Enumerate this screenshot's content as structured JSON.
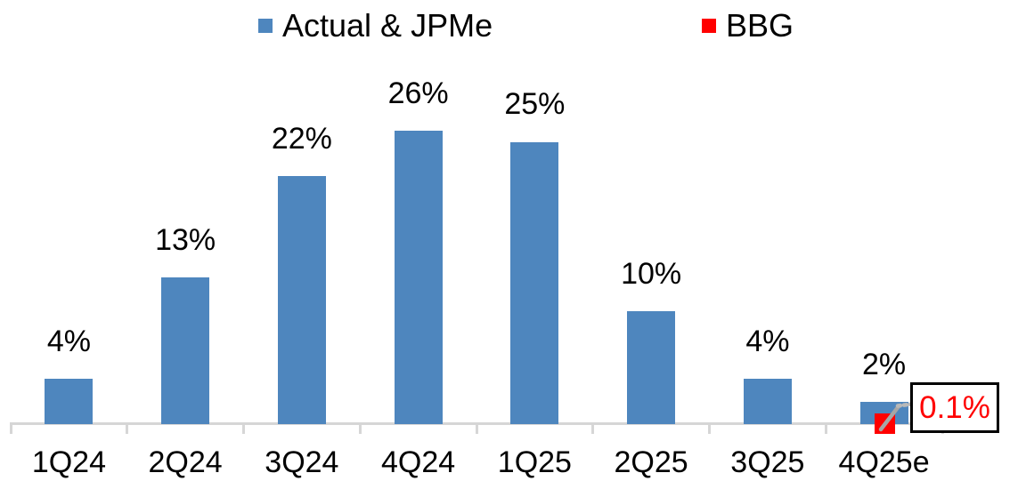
{
  "chart_data": {
    "type": "bar",
    "title": "",
    "xlabel": "",
    "ylabel": "",
    "grid": false,
    "y_axis_visible": false,
    "legend_position": "top",
    "ylim": [
      0,
      30
    ],
    "categories": [
      "1Q24",
      "2Q24",
      "3Q24",
      "4Q24",
      "1Q25",
      "2Q25",
      "3Q25",
      "4Q25e"
    ],
    "series": [
      {
        "name": "Actual & JPMe",
        "type": "bar",
        "color": "#4E86BE",
        "values": [
          4,
          13,
          22,
          26,
          25,
          10,
          4,
          2
        ],
        "data_labels": [
          "4%",
          "13%",
          "22%",
          "26%",
          "25%",
          "10%",
          "4%",
          "2%"
        ]
      },
      {
        "name": "BBG",
        "type": "scatter",
        "marker": "square",
        "color": "#FF0000",
        "values": [
          null,
          null,
          null,
          null,
          null,
          null,
          null,
          0.1
        ],
        "data_labels": [
          null,
          null,
          null,
          null,
          null,
          null,
          null,
          "0.1%"
        ]
      }
    ],
    "annotations": [
      {
        "text": "0.1%",
        "text_color": "#FF0000",
        "box_border_color": "#000000",
        "box_fill": "#FFFFFF",
        "attached_series": "BBG",
        "attached_category": "4Q25e"
      }
    ]
  },
  "legend": {
    "items": [
      {
        "label": "Actual & JPMe",
        "color": "#4E86BE"
      },
      {
        "label": "BBG",
        "color": "#FF0000"
      }
    ]
  },
  "callout": {
    "text": "0.1%",
    "text_color": "#FF0000",
    "border_color": "#000000"
  },
  "colors": {
    "bar": "#4E86BE",
    "bbg_marker": "#FF0000",
    "axis_line": "#D6D6D6",
    "tick": "#D6D6D6",
    "leader_line": "#A6A6A6",
    "leader_line_dotted": "#B8B8B8",
    "label_text": "#000000",
    "background": "#FFFFFF"
  }
}
